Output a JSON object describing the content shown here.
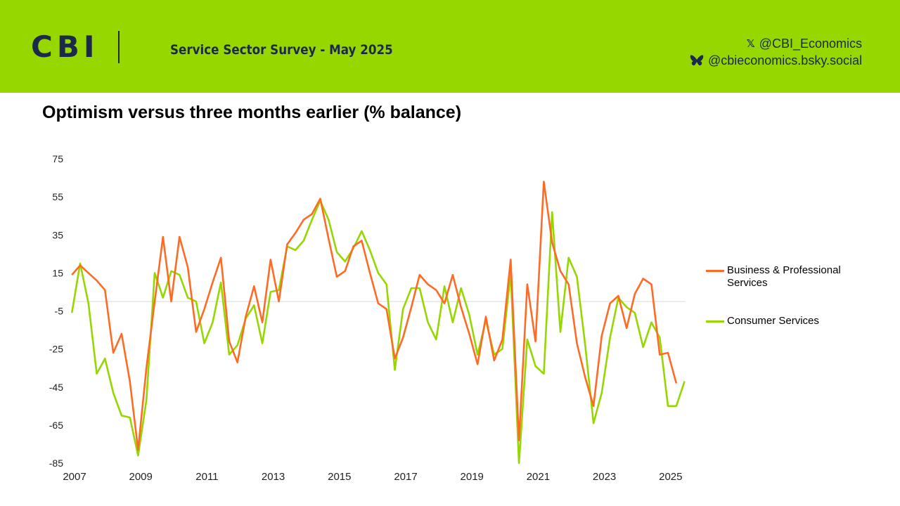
{
  "header": {
    "brand_logo": "CBI",
    "survey_title": "Service Sector Survey - May 2025",
    "social_x": "@CBI_Economics",
    "social_bluesky": "@cbieconomics.bsky.social",
    "x_icon": "x-logo-icon",
    "bluesky_icon": "butterfly-icon",
    "banner_color": "#96d700",
    "text_color": "#1b2a4a"
  },
  "chart_data": {
    "type": "line",
    "title": "Optimism versus three months earlier (% balance)",
    "xlabel": "",
    "ylabel": "",
    "ylim": [
      -85,
      75
    ],
    "yticks": [
      75,
      55,
      35,
      15,
      -5,
      -25,
      -45,
      -65,
      -85
    ],
    "xlim": [
      2007.0,
      2025.45
    ],
    "xticks": [
      "2007",
      "2009",
      "2011",
      "2013",
      "2015",
      "2017",
      "2019",
      "2021",
      "2023",
      "2025"
    ],
    "grid": false,
    "legend_position": "right",
    "series": [
      {
        "name": "Business & Professional Services",
        "color": "#ff6b24",
        "points": [
          [
            2006.92,
            14
          ],
          [
            2007.17,
            19
          ],
          [
            2007.42,
            15
          ],
          [
            2007.67,
            11
          ],
          [
            2007.92,
            6
          ],
          [
            2008.17,
            -27
          ],
          [
            2008.42,
            -17
          ],
          [
            2008.67,
            -42
          ],
          [
            2008.92,
            -78
          ],
          [
            2009.17,
            -35
          ],
          [
            2009.42,
            0
          ],
          [
            2009.67,
            34
          ],
          [
            2009.92,
            0
          ],
          [
            2010.17,
            34
          ],
          [
            2010.42,
            18
          ],
          [
            2010.67,
            -16
          ],
          [
            2010.92,
            -4
          ],
          [
            2011.17,
            10
          ],
          [
            2011.42,
            23
          ],
          [
            2011.67,
            -21
          ],
          [
            2011.92,
            -32
          ],
          [
            2012.17,
            -8
          ],
          [
            2012.42,
            8
          ],
          [
            2012.67,
            -11
          ],
          [
            2012.92,
            22
          ],
          [
            2013.17,
            0
          ],
          [
            2013.42,
            30
          ],
          [
            2013.67,
            36
          ],
          [
            2013.92,
            43
          ],
          [
            2014.17,
            46
          ],
          [
            2014.42,
            54
          ],
          [
            2014.67,
            33
          ],
          [
            2014.92,
            13
          ],
          [
            2015.17,
            16
          ],
          [
            2015.42,
            29
          ],
          [
            2015.67,
            32
          ],
          [
            2015.92,
            15
          ],
          [
            2016.17,
            -1
          ],
          [
            2016.42,
            -4
          ],
          [
            2016.67,
            -30
          ],
          [
            2016.92,
            -19
          ],
          [
            2017.17,
            -3
          ],
          [
            2017.42,
            14
          ],
          [
            2017.67,
            9
          ],
          [
            2017.92,
            6
          ],
          [
            2018.17,
            -1
          ],
          [
            2018.42,
            14
          ],
          [
            2018.67,
            -3
          ],
          [
            2018.92,
            -17
          ],
          [
            2019.17,
            -33
          ],
          [
            2019.42,
            -8
          ],
          [
            2019.67,
            -31
          ],
          [
            2019.92,
            -20
          ],
          [
            2020.17,
            22
          ],
          [
            2020.42,
            -73
          ],
          [
            2020.67,
            9
          ],
          [
            2020.92,
            -21
          ],
          [
            2021.17,
            63
          ],
          [
            2021.42,
            31
          ],
          [
            2021.67,
            16
          ],
          [
            2021.92,
            9
          ],
          [
            2022.17,
            -22
          ],
          [
            2022.42,
            -40
          ],
          [
            2022.67,
            -55
          ],
          [
            2022.92,
            -18
          ],
          [
            2023.17,
            -1
          ],
          [
            2023.42,
            3
          ],
          [
            2023.67,
            -14
          ],
          [
            2023.92,
            4
          ],
          [
            2024.17,
            12
          ],
          [
            2024.42,
            9
          ],
          [
            2024.67,
            -28
          ],
          [
            2024.92,
            -27
          ],
          [
            2025.17,
            -43
          ]
        ]
      },
      {
        "name": "Consumer Services",
        "color": "#96d700",
        "points": [
          [
            2006.92,
            -6
          ],
          [
            2007.17,
            20
          ],
          [
            2007.42,
            -1
          ],
          [
            2007.67,
            -38
          ],
          [
            2007.92,
            -30
          ],
          [
            2008.17,
            -48
          ],
          [
            2008.42,
            -60
          ],
          [
            2008.67,
            -61
          ],
          [
            2008.92,
            -81
          ],
          [
            2009.17,
            -52
          ],
          [
            2009.42,
            15
          ],
          [
            2009.67,
            2
          ],
          [
            2009.92,
            16
          ],
          [
            2010.17,
            14
          ],
          [
            2010.42,
            2
          ],
          [
            2010.67,
            0
          ],
          [
            2010.92,
            -22
          ],
          [
            2011.17,
            -11
          ],
          [
            2011.42,
            10
          ],
          [
            2011.67,
            -28
          ],
          [
            2011.92,
            -23
          ],
          [
            2012.17,
            -9
          ],
          [
            2012.42,
            -2
          ],
          [
            2012.67,
            -22
          ],
          [
            2012.92,
            5
          ],
          [
            2013.17,
            6
          ],
          [
            2013.42,
            29
          ],
          [
            2013.67,
            27
          ],
          [
            2013.92,
            32
          ],
          [
            2014.17,
            43
          ],
          [
            2014.42,
            53
          ],
          [
            2014.67,
            43
          ],
          [
            2014.92,
            26
          ],
          [
            2015.17,
            21
          ],
          [
            2015.42,
            28
          ],
          [
            2015.67,
            37
          ],
          [
            2015.92,
            27
          ],
          [
            2016.17,
            15
          ],
          [
            2016.42,
            9
          ],
          [
            2016.67,
            -36
          ],
          [
            2016.92,
            -4
          ],
          [
            2017.17,
            7
          ],
          [
            2017.42,
            7
          ],
          [
            2017.67,
            -11
          ],
          [
            2017.92,
            -20
          ],
          [
            2018.17,
            8
          ],
          [
            2018.42,
            -11
          ],
          [
            2018.67,
            7
          ],
          [
            2018.92,
            -7
          ],
          [
            2019.17,
            -28
          ],
          [
            2019.42,
            -10
          ],
          [
            2019.67,
            -28
          ],
          [
            2019.92,
            -25
          ],
          [
            2020.17,
            15
          ],
          [
            2020.42,
            -85
          ],
          [
            2020.67,
            -20
          ],
          [
            2020.92,
            -34
          ],
          [
            2021.17,
            -38
          ],
          [
            2021.42,
            47
          ],
          [
            2021.67,
            -16
          ],
          [
            2021.92,
            23
          ],
          [
            2022.17,
            13
          ],
          [
            2022.42,
            -23
          ],
          [
            2022.67,
            -64
          ],
          [
            2022.92,
            -48
          ],
          [
            2023.17,
            -19
          ],
          [
            2023.42,
            2
          ],
          [
            2023.67,
            -3
          ],
          [
            2023.92,
            -6
          ],
          [
            2024.17,
            -24
          ],
          [
            2024.42,
            -11
          ],
          [
            2024.67,
            -19
          ],
          [
            2024.92,
            -55
          ],
          [
            2025.17,
            -55
          ],
          [
            2025.42,
            -42
          ]
        ]
      }
    ]
  }
}
